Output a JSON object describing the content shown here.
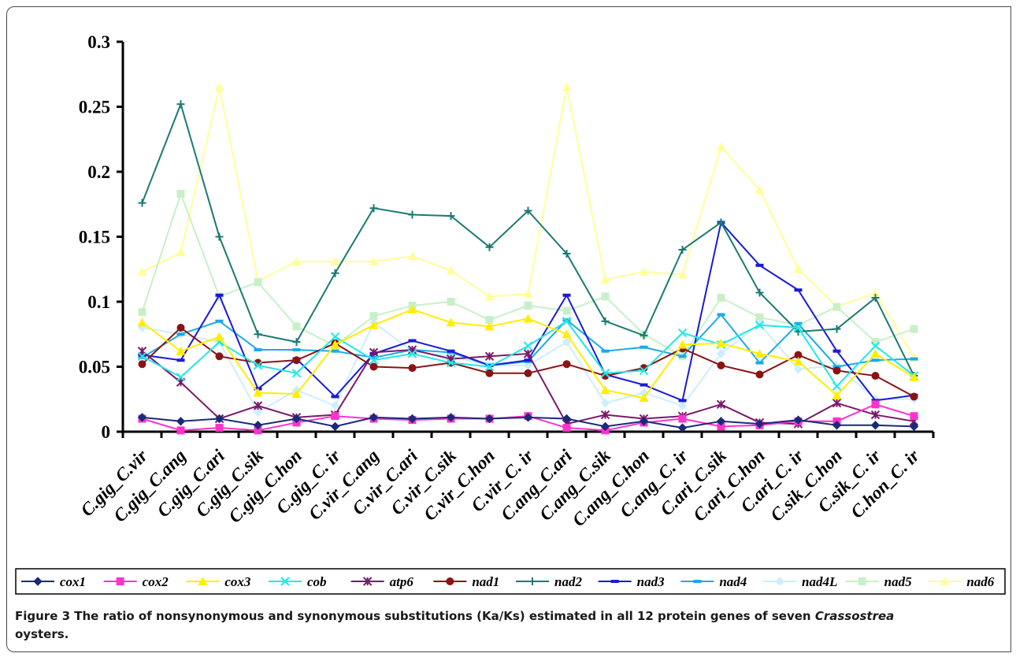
{
  "chart_data": {
    "type": "line",
    "categories": [
      "C.gig_C.vir",
      "C.gig_C.ang",
      "C.gig_C.ari",
      "C.gig_C.sik",
      "C.gig_C.hon",
      "C.gig_C. ir",
      "C.vir_C.ang",
      "C.vir_C.ari",
      "C.vir_C.sik",
      "C.vir_C.hon",
      "C.vir_C. ir",
      "C.ang_C.ari",
      "C.ang_C.sik",
      "C.ang_C.hon",
      "C.ang_C. ir",
      "C.ari_C.sik",
      "C.ari_C.hon",
      "C.ari_C. ir",
      "C.sik_C.hon",
      "C.sik_C. ir",
      "C.hon_C. ir"
    ],
    "ylim": [
      0,
      0.3
    ],
    "yticks": [
      "0",
      "0.05",
      "0.1",
      "0.15",
      "0.2",
      "0.25",
      "0.3"
    ],
    "legend_position": "bottom",
    "grid": false,
    "series": [
      {
        "name": "cox1",
        "color": "#1a2a7a",
        "marker": "diamond",
        "values": [
          0.011,
          0.008,
          0.01,
          0.005,
          0.01,
          0.004,
          0.011,
          0.01,
          0.011,
          0.01,
          0.011,
          0.01,
          0.004,
          0.008,
          0.003,
          0.008,
          0.006,
          0.009,
          0.005,
          0.005,
          0.004
        ]
      },
      {
        "name": "cox2",
        "color": "#ff33cc",
        "marker": "square",
        "values": [
          0.01,
          0.001,
          0.003,
          0.001,
          0.007,
          0.012,
          0.01,
          0.009,
          0.01,
          0.01,
          0.012,
          0.003,
          0.001,
          0.007,
          0.01,
          0.004,
          0.005,
          0.008,
          0.008,
          0.021,
          0.012
        ]
      },
      {
        "name": "cox3",
        "color": "#ffee00",
        "marker": "triangle",
        "values": [
          0.084,
          0.062,
          0.073,
          0.03,
          0.029,
          0.067,
          0.082,
          0.094,
          0.084,
          0.081,
          0.087,
          0.075,
          0.032,
          0.026,
          0.067,
          0.068,
          0.06,
          0.054,
          0.028,
          0.06,
          0.042
        ]
      },
      {
        "name": "cob",
        "color": "#22e8e8",
        "marker": "x",
        "values": [
          0.058,
          0.042,
          0.069,
          0.051,
          0.045,
          0.073,
          0.055,
          0.06,
          0.053,
          0.05,
          0.066,
          0.085,
          0.045,
          0.047,
          0.076,
          0.067,
          0.082,
          0.08,
          0.035,
          0.066,
          0.043
        ]
      },
      {
        "name": "atp6",
        "color": "#7a1a6a",
        "marker": "star",
        "values": [
          0.062,
          0.038,
          0.01,
          0.02,
          0.011,
          0.013,
          0.061,
          0.063,
          0.056,
          0.058,
          0.06,
          0.006,
          0.013,
          0.01,
          0.012,
          0.021,
          0.007,
          0.006,
          0.022,
          0.013,
          0.008
        ]
      },
      {
        "name": "nad1",
        "color": "#8a1414",
        "marker": "circle",
        "values": [
          0.052,
          0.08,
          0.058,
          0.053,
          0.055,
          0.068,
          0.05,
          0.049,
          0.053,
          0.045,
          0.045,
          0.052,
          0.043,
          0.049,
          0.064,
          0.051,
          0.044,
          0.059,
          0.047,
          0.043,
          0.027
        ]
      },
      {
        "name": "nad2",
        "color": "#1a7a72",
        "marker": "plus",
        "values": [
          0.176,
          0.252,
          0.15,
          0.075,
          0.069,
          0.122,
          0.172,
          0.167,
          0.166,
          0.142,
          0.17,
          0.137,
          0.085,
          0.074,
          0.14,
          0.161,
          0.107,
          0.077,
          0.079,
          0.103,
          0.043
        ]
      },
      {
        "name": "nad3",
        "color": "#1a1ad6",
        "marker": "dash",
        "values": [
          0.059,
          0.055,
          0.105,
          0.033,
          0.056,
          0.027,
          0.06,
          0.07,
          0.062,
          0.051,
          0.055,
          0.105,
          0.044,
          0.036,
          0.024,
          0.161,
          0.128,
          0.109,
          0.062,
          0.024,
          0.028
        ]
      },
      {
        "name": "nad4",
        "color": "#1aaae8",
        "marker": "dash",
        "values": [
          0.057,
          0.075,
          0.085,
          0.063,
          0.063,
          0.062,
          0.057,
          0.063,
          0.061,
          0.051,
          0.054,
          0.086,
          0.062,
          0.065,
          0.058,
          0.09,
          0.053,
          0.083,
          0.05,
          0.055,
          0.056
        ]
      },
      {
        "name": "nad4L",
        "color": "#cceeff",
        "marker": "diamond",
        "values": [
          0.08,
          0.075,
          0.069,
          0.015,
          0.032,
          0.02,
          0.084,
          0.062,
          0.058,
          0.051,
          0.051,
          0.069,
          0.022,
          0.03,
          0.02,
          0.06,
          0.083,
          0.048,
          0.051,
          0.025,
          0.025
        ]
      },
      {
        "name": "nad5",
        "color": "#c8f0c8",
        "marker": "square",
        "values": [
          0.092,
          0.183,
          0.104,
          0.115,
          0.081,
          0.066,
          0.089,
          0.097,
          0.1,
          0.086,
          0.097,
          0.093,
          0.104,
          0.075,
          0.058,
          0.103,
          0.088,
          0.082,
          0.096,
          0.069,
          0.079
        ]
      },
      {
        "name": "nad6",
        "color": "#ffff99",
        "marker": "triangle",
        "values": [
          0.123,
          0.138,
          0.265,
          0.116,
          0.131,
          0.131,
          0.131,
          0.135,
          0.124,
          0.104,
          0.106,
          0.265,
          0.117,
          0.123,
          0.121,
          0.219,
          0.186,
          0.125,
          0.096,
          0.107,
          0.057
        ]
      }
    ]
  },
  "caption": {
    "label": "Figure 3",
    "text_pre": " The ratio of nonsynonymous and synonymous substitutions (Ka/Ks) estimated in all 12 protein genes of seven ",
    "genus": "Crassostrea",
    "text_post": "oysters."
  }
}
